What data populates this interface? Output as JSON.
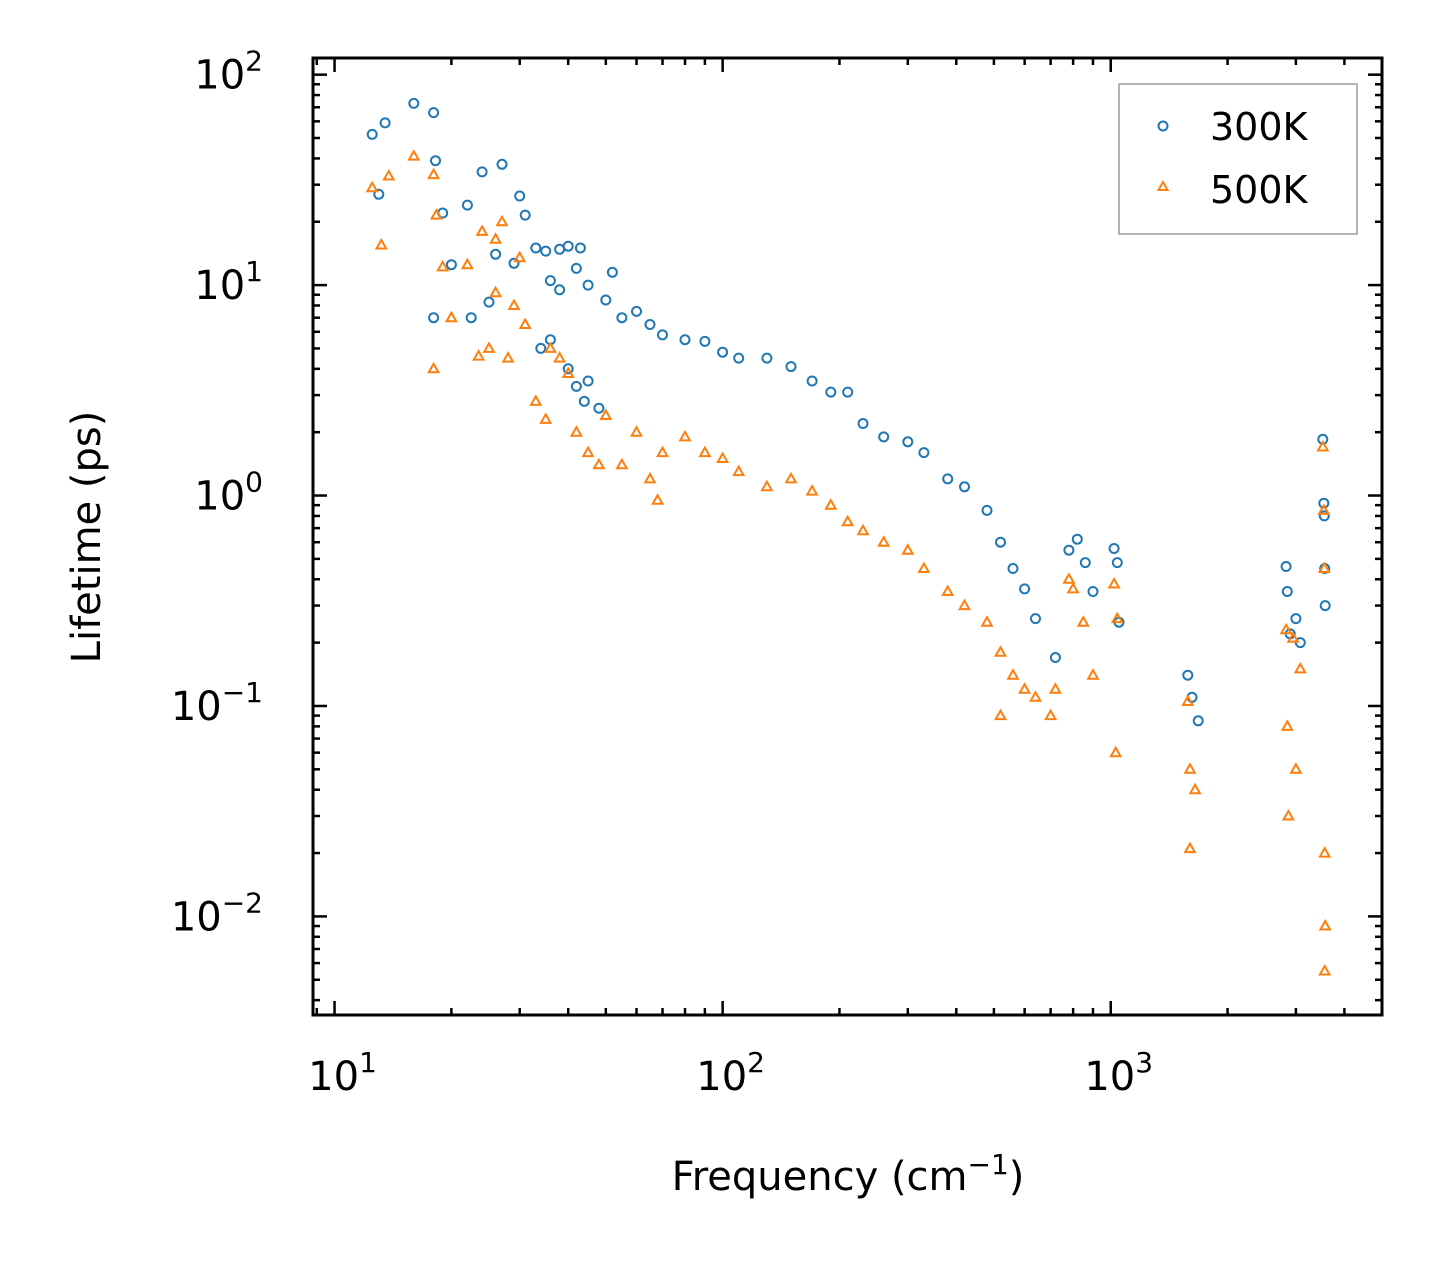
{
  "chart_data": {
    "type": "scatter",
    "xscale": "log",
    "yscale": "log",
    "xlabel": "Frequency (cm",
    "xlabel_unit_exp": "−1",
    "xlabel_close": ")",
    "ylabel": "Lifetime (ps)",
    "xlim": [
      8.8,
      5000
    ],
    "ylim": [
      0.0034,
      120
    ],
    "x_ticks": [
      {
        "value": 10,
        "base": "10",
        "exp": "1"
      },
      {
        "value": 100,
        "base": "10",
        "exp": "2"
      },
      {
        "value": 1000,
        "base": "10",
        "exp": "3"
      }
    ],
    "y_ticks": [
      {
        "value": 100,
        "base": "10",
        "exp": "2"
      },
      {
        "value": 10,
        "base": "10",
        "exp": "1"
      },
      {
        "value": 1,
        "base": "10",
        "exp": "0"
      },
      {
        "value": 0.1,
        "base": "10",
        "exp": "−1"
      },
      {
        "value": 0.01,
        "base": "10",
        "exp": "−2"
      }
    ],
    "legend": {
      "position": "top-right"
    },
    "series": [
      {
        "name": "300K",
        "marker": "circle",
        "color": "#1f77b4",
        "points": [
          [
            12.5,
            52
          ],
          [
            13.0,
            27
          ],
          [
            13.5,
            59
          ],
          [
            16.0,
            73
          ],
          [
            18.0,
            66
          ],
          [
            18.2,
            39
          ],
          [
            19.0,
            22
          ],
          [
            20.0,
            12.5
          ],
          [
            22.0,
            24
          ],
          [
            24.0,
            34.5
          ],
          [
            26.0,
            14
          ],
          [
            27.0,
            37.5
          ],
          [
            22.5,
            7.0
          ],
          [
            25.0,
            8.3
          ],
          [
            18.0,
            7.0
          ],
          [
            30.0,
            26.5
          ],
          [
            31.0,
            21.5
          ],
          [
            29.0,
            12.7
          ],
          [
            33.0,
            15.0
          ],
          [
            35.0,
            14.5
          ],
          [
            38.0,
            14.8
          ],
          [
            40.0,
            15.3
          ],
          [
            43.0,
            15.0
          ],
          [
            36.0,
            10.5
          ],
          [
            38.0,
            9.5
          ],
          [
            42.0,
            12.0
          ],
          [
            45.0,
            10.0
          ],
          [
            50.0,
            8.5
          ],
          [
            52.0,
            11.5
          ],
          [
            55.0,
            7.0
          ],
          [
            34.0,
            5.0
          ],
          [
            36.0,
            5.5
          ],
          [
            40.0,
            4.0
          ],
          [
            42.0,
            3.3
          ],
          [
            45.0,
            3.5
          ],
          [
            48.0,
            2.6
          ],
          [
            44.0,
            2.8
          ],
          [
            60.0,
            7.5
          ],
          [
            65.0,
            6.5
          ],
          [
            70.0,
            5.8
          ],
          [
            80.0,
            5.5
          ],
          [
            90.0,
            5.4
          ],
          [
            100.0,
            4.8
          ],
          [
            110.0,
            4.5
          ],
          [
            130.0,
            4.5
          ],
          [
            150.0,
            4.1
          ],
          [
            170.0,
            3.5
          ],
          [
            190.0,
            3.1
          ],
          [
            210.0,
            3.1
          ],
          [
            230.0,
            2.2
          ],
          [
            260.0,
            1.9
          ],
          [
            300.0,
            1.8
          ],
          [
            330.0,
            1.6
          ],
          [
            380.0,
            1.2
          ],
          [
            420.0,
            1.1
          ],
          [
            480.0,
            0.85
          ],
          [
            520.0,
            0.6
          ],
          [
            560.0,
            0.45
          ],
          [
            600.0,
            0.36
          ],
          [
            640.0,
            0.26
          ],
          [
            720.0,
            0.17
          ],
          [
            780.0,
            0.55
          ],
          [
            820.0,
            0.62
          ],
          [
            860.0,
            0.48
          ],
          [
            900.0,
            0.35
          ],
          [
            1020.0,
            0.56
          ],
          [
            1040.0,
            0.48
          ],
          [
            1050.0,
            0.25
          ],
          [
            1580.0,
            0.14
          ],
          [
            1620.0,
            0.11
          ],
          [
            1680.0,
            0.085
          ],
          [
            2830.0,
            0.46
          ],
          [
            2850.0,
            0.35
          ],
          [
            2900.0,
            0.22
          ],
          [
            3000.0,
            0.26
          ],
          [
            3080.0,
            0.2
          ],
          [
            3520.0,
            1.85
          ],
          [
            3540.0,
            0.92
          ],
          [
            3550.0,
            0.8
          ],
          [
            3560.0,
            0.45
          ],
          [
            3570.0,
            0.3
          ]
        ]
      },
      {
        "name": "500K",
        "marker": "triangle",
        "color": "#ff7f0e",
        "points": [
          [
            12.5,
            29
          ],
          [
            13.2,
            15.5
          ],
          [
            13.8,
            33
          ],
          [
            16.0,
            41
          ],
          [
            18.0,
            33.5
          ],
          [
            18.3,
            21.5
          ],
          [
            19.0,
            12.2
          ],
          [
            18.0,
            4.0
          ],
          [
            20.0,
            7.0
          ],
          [
            22.0,
            12.5
          ],
          [
            24.0,
            18
          ],
          [
            26.0,
            16.5
          ],
          [
            27.0,
            20
          ],
          [
            23.5,
            4.6
          ],
          [
            25.0,
            5.0
          ],
          [
            26.0,
            9.2
          ],
          [
            28.0,
            4.5
          ],
          [
            30.0,
            13.5
          ],
          [
            29.0,
            8.0
          ],
          [
            31.0,
            6.5
          ],
          [
            33.0,
            2.8
          ],
          [
            35.0,
            2.3
          ],
          [
            36.0,
            5.0
          ],
          [
            38.0,
            4.5
          ],
          [
            40.0,
            3.8
          ],
          [
            42.0,
            2.0
          ],
          [
            45.0,
            1.6
          ],
          [
            48.0,
            1.4
          ],
          [
            50.0,
            2.4
          ],
          [
            55.0,
            1.4
          ],
          [
            60.0,
            2.0
          ],
          [
            65.0,
            1.2
          ],
          [
            68.0,
            0.95
          ],
          [
            70.0,
            1.6
          ],
          [
            80.0,
            1.9
          ],
          [
            90.0,
            1.6
          ],
          [
            100.0,
            1.5
          ],
          [
            110.0,
            1.3
          ],
          [
            130.0,
            1.1
          ],
          [
            150.0,
            1.2
          ],
          [
            170.0,
            1.05
          ],
          [
            190.0,
            0.9
          ],
          [
            210.0,
            0.75
          ],
          [
            230.0,
            0.68
          ],
          [
            260.0,
            0.6
          ],
          [
            300.0,
            0.55
          ],
          [
            330.0,
            0.45
          ],
          [
            380.0,
            0.35
          ],
          [
            420.0,
            0.3
          ],
          [
            480.0,
            0.25
          ],
          [
            520.0,
            0.18
          ],
          [
            560.0,
            0.14
          ],
          [
            600.0,
            0.12
          ],
          [
            640.0,
            0.11
          ],
          [
            520.0,
            0.09
          ],
          [
            720.0,
            0.12
          ],
          [
            700.0,
            0.09
          ],
          [
            780.0,
            0.4
          ],
          [
            800.0,
            0.36
          ],
          [
            850.0,
            0.25
          ],
          [
            900.0,
            0.14
          ],
          [
            1020.0,
            0.38
          ],
          [
            1040.0,
            0.26
          ],
          [
            1030.0,
            0.06
          ],
          [
            1580.0,
            0.105
          ],
          [
            1600.0,
            0.05
          ],
          [
            1600.0,
            0.021
          ],
          [
            1650.0,
            0.04
          ],
          [
            2830.0,
            0.23
          ],
          [
            2850.0,
            0.08
          ],
          [
            2870.0,
            0.03
          ],
          [
            2950.0,
            0.21
          ],
          [
            3080.0,
            0.15
          ],
          [
            3000.0,
            0.05
          ],
          [
            3520.0,
            1.7
          ],
          [
            3540.0,
            0.85
          ],
          [
            3550.0,
            0.45
          ],
          [
            3560.0,
            0.02
          ],
          [
            3560.0,
            0.0055
          ],
          [
            3570.0,
            0.009
          ]
        ]
      }
    ]
  }
}
